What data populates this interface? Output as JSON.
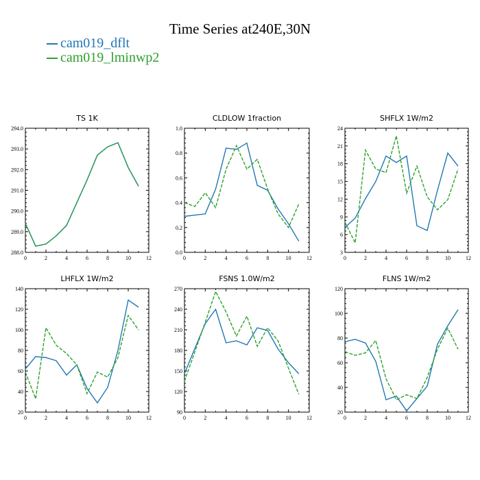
{
  "figure": {
    "title": "Time Series at240E,30N",
    "legend": [
      {
        "name": "cam019_dflt",
        "color": "#1f77b4"
      },
      {
        "name": "cam019_lminwp2",
        "color": "#2ca02c"
      }
    ]
  },
  "chart_data": [
    {
      "type": "line",
      "title": "TS   1K",
      "x": [
        0,
        1,
        2,
        3,
        4,
        5,
        6,
        7,
        8,
        9,
        10,
        11
      ],
      "xlim": [
        0,
        12
      ],
      "xticks": [
        "0",
        "2",
        "4",
        "6",
        "8",
        "10",
        "12"
      ],
      "ylim": [
        288,
        294
      ],
      "yticks": [
        "288.0",
        "289.0",
        "290.0",
        "291.0",
        "292.0",
        "293.0",
        "294.0"
      ],
      "series": [
        {
          "name": "cam019_dflt",
          "values": [
            289.4,
            288.3,
            288.4,
            288.8,
            289.3,
            290.4,
            291.5,
            292.7,
            293.1,
            293.3,
            292.1,
            291.2
          ]
        },
        {
          "name": "cam019_lminwp2",
          "values": [
            289.4,
            288.3,
            288.4,
            288.8,
            289.3,
            290.4,
            291.5,
            292.7,
            293.1,
            293.3,
            292.1,
            291.2
          ]
        }
      ]
    },
    {
      "type": "line",
      "title": "CLDLOW   1fraction",
      "x": [
        0,
        1,
        2,
        3,
        4,
        5,
        6,
        7,
        8,
        9,
        10,
        11
      ],
      "xlim": [
        0,
        12
      ],
      "xticks": [
        "0",
        "2",
        "4",
        "6",
        "8",
        "10",
        "12"
      ],
      "ylim": [
        0,
        1
      ],
      "yticks": [
        "0.0",
        "0.2",
        "0.4",
        "0.6",
        "0.8",
        "1.0"
      ],
      "series": [
        {
          "name": "cam019_dflt",
          "values": [
            0.29,
            0.3,
            0.31,
            0.51,
            0.84,
            0.83,
            0.88,
            0.54,
            0.5,
            0.35,
            0.23,
            0.09
          ]
        },
        {
          "name": "cam019_lminwp2",
          "values": [
            0.4,
            0.37,
            0.48,
            0.36,
            0.67,
            0.86,
            0.67,
            0.75,
            0.51,
            0.31,
            0.2,
            0.39
          ]
        }
      ]
    },
    {
      "type": "line",
      "title": "SHFLX   1W/m2",
      "x": [
        0,
        1,
        2,
        3,
        4,
        5,
        6,
        7,
        8,
        9,
        10,
        11
      ],
      "xlim": [
        0,
        12
      ],
      "xticks": [
        "0",
        "2",
        "4",
        "6",
        "8",
        "10",
        "12"
      ],
      "ylim": [
        3,
        24
      ],
      "yticks": [
        "3",
        "6",
        "9",
        "12",
        "15",
        "18",
        "21",
        "24"
      ],
      "series": [
        {
          "name": "cam019_dflt",
          "values": [
            7.2,
            8.8,
            12.1,
            15.0,
            19.3,
            18.2,
            19.3,
            7.5,
            6.7,
            13.5,
            19.8,
            17.6
          ]
        },
        {
          "name": "cam019_lminwp2",
          "values": [
            8.1,
            4.6,
            20.3,
            17.1,
            16.5,
            22.7,
            13.0,
            17.6,
            12.4,
            10.2,
            11.9,
            17.1
          ]
        }
      ]
    },
    {
      "type": "line",
      "title": "LHFLX   1W/m2",
      "x": [
        0,
        1,
        2,
        3,
        4,
        5,
        6,
        7,
        8,
        9,
        10,
        11
      ],
      "xlim": [
        0,
        12
      ],
      "xticks": [
        "0",
        "2",
        "4",
        "6",
        "8",
        "10",
        "12"
      ],
      "ylim": [
        20,
        140
      ],
      "yticks": [
        "20",
        "40",
        "60",
        "80",
        "100",
        "120",
        "140"
      ],
      "series": [
        {
          "name": "cam019_dflt",
          "values": [
            62,
            74,
            73,
            70,
            56,
            66,
            43,
            29,
            44,
            80,
            129,
            122
          ]
        },
        {
          "name": "cam019_lminwp2",
          "values": [
            59,
            33,
            102,
            85,
            77,
            66,
            38,
            59,
            54,
            73,
            114,
            100
          ]
        }
      ]
    },
    {
      "type": "line",
      "title": "FSNS   1.0W/m2",
      "x": [
        0,
        1,
        2,
        3,
        4,
        5,
        6,
        7,
        8,
        9,
        10,
        11
      ],
      "xlim": [
        0,
        12
      ],
      "xticks": [
        "0",
        "2",
        "4",
        "6",
        "8",
        "10",
        "12"
      ],
      "ylim": [
        90,
        270
      ],
      "yticks": [
        "90",
        "120",
        "150",
        "180",
        "210",
        "240",
        "270"
      ],
      "series": [
        {
          "name": "cam019_dflt",
          "values": [
            146,
            183,
            219,
            240,
            191,
            194,
            188,
            213,
            209,
            182,
            162,
            146
          ]
        },
        {
          "name": "cam019_lminwp2",
          "values": [
            135,
            178,
            221,
            266,
            236,
            201,
            230,
            186,
            213,
            194,
            154,
            116
          ]
        }
      ]
    },
    {
      "type": "line",
      "title": "FLNS   1W/m2",
      "x": [
        0,
        1,
        2,
        3,
        4,
        5,
        6,
        7,
        8,
        9,
        10,
        11
      ],
      "xlim": [
        0,
        12
      ],
      "xticks": [
        "0",
        "2",
        "4",
        "6",
        "8",
        "10",
        "12"
      ],
      "ylim": [
        20,
        120
      ],
      "yticks": [
        "20",
        "40",
        "60",
        "80",
        "100",
        "120"
      ],
      "series": [
        {
          "name": "cam019_dflt",
          "values": [
            77,
            79,
            76,
            61,
            30,
            33,
            21,
            31,
            41,
            75,
            90,
            103
          ]
        },
        {
          "name": "cam019_lminwp2",
          "values": [
            69,
            66,
            68,
            78,
            47,
            30,
            34,
            31,
            48,
            71,
            88,
            71
          ]
        }
      ]
    }
  ]
}
